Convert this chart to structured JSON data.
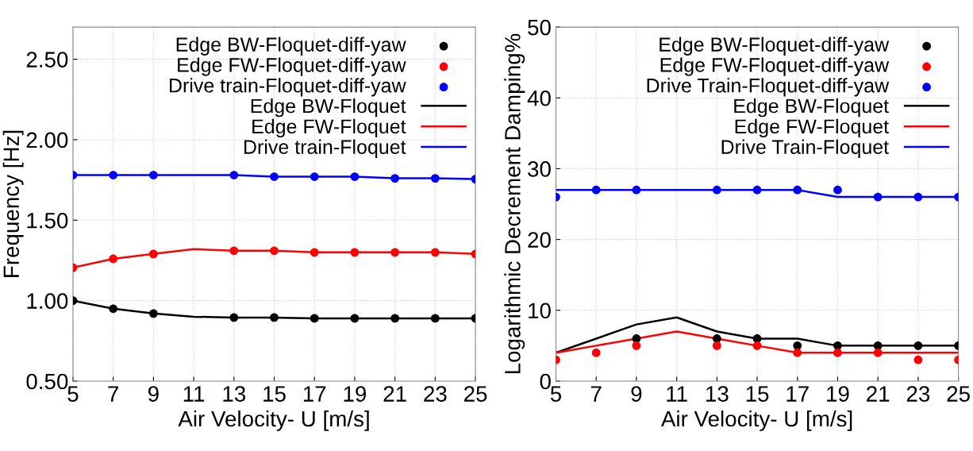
{
  "chart_data": [
    {
      "type": "line",
      "xlabel": "Air Velocity- U [m/s]",
      "ylabel": "Frequency [Hz]",
      "x": [
        5,
        7,
        9,
        11,
        13,
        15,
        17,
        19,
        21,
        23,
        25
      ],
      "xlim": [
        5,
        25
      ],
      "xticks": [
        5,
        7,
        9,
        11,
        13,
        15,
        17,
        19,
        21,
        23,
        25
      ],
      "ylim": [
        0.5,
        2.7
      ],
      "yticks": [
        {
          "value": 0.5,
          "label": "0.50"
        },
        {
          "value": 1.0,
          "label": "1.00"
        },
        {
          "value": 1.5,
          "label": "1.50"
        },
        {
          "value": 2.0,
          "label": "2.00"
        },
        {
          "value": 2.5,
          "label": "2.50"
        }
      ],
      "grid": true,
      "legend": "top right",
      "series": [
        {
          "name": "Edge BW-Floquet-diff-yaw",
          "type": "scatter",
          "marker": "circle",
          "color": "#000000",
          "values": [
            1.0,
            0.95,
            0.92,
            null,
            0.895,
            0.895,
            0.89,
            0.89,
            0.89,
            0.89,
            0.89
          ]
        },
        {
          "name": "Edge FW-Floquet-diff-yaw",
          "type": "scatter",
          "marker": "circle",
          "color": "#ff0000",
          "values": [
            1.205,
            1.26,
            1.29,
            null,
            1.31,
            1.31,
            1.3,
            1.3,
            1.3,
            1.3,
            1.29
          ]
        },
        {
          "name": "Drive train-Floquet-diff-yaw",
          "type": "scatter",
          "marker": "circle",
          "color": "#0000ff",
          "values": [
            1.78,
            1.78,
            1.78,
            null,
            1.78,
            1.77,
            1.77,
            1.77,
            1.76,
            1.76,
            1.755
          ]
        },
        {
          "name": "Edge BW-Floquet",
          "color": "#000000",
          "values": [
            1.0,
            0.95,
            0.92,
            0.9,
            0.895,
            0.895,
            0.89,
            0.89,
            0.89,
            0.89,
            0.89
          ]
        },
        {
          "name": "Edge FW-Floquet",
          "color": "#ff0000",
          "values": [
            1.205,
            1.26,
            1.29,
            1.32,
            1.31,
            1.31,
            1.3,
            1.3,
            1.3,
            1.3,
            1.29
          ]
        },
        {
          "name": "Drive train-Floquet",
          "color": "#0000ff",
          "values": [
            1.78,
            1.78,
            1.78,
            1.78,
            1.78,
            1.77,
            1.77,
            1.77,
            1.76,
            1.76,
            1.755
          ]
        }
      ]
    },
    {
      "type": "line",
      "xlabel": "Air Velocity- U [m/s]",
      "ylabel": "Logarithmic Decrement Damping%",
      "x": [
        5,
        7,
        9,
        11,
        13,
        15,
        17,
        19,
        21,
        23,
        25
      ],
      "xlim": [
        5,
        25
      ],
      "xticks": [
        5,
        7,
        9,
        11,
        13,
        15,
        17,
        19,
        21,
        23,
        25
      ],
      "ylim": [
        0,
        50
      ],
      "yticks": [
        0,
        10,
        20,
        30,
        40,
        50
      ],
      "grid": true,
      "legend": "top right",
      "series": [
        {
          "name": "Edge BW-Floquet-diff-yaw",
          "type": "scatter",
          "marker": "circle",
          "color": "#000000",
          "values": [
            null,
            null,
            6,
            null,
            6,
            6,
            5,
            5,
            5,
            5,
            5
          ]
        },
        {
          "name": "Edge FW-Floquet-diff-yaw",
          "type": "scatter",
          "marker": "circle",
          "color": "#ff0000",
          "values": [
            3,
            4,
            5,
            null,
            5,
            5,
            4,
            4,
            4,
            3,
            3
          ]
        },
        {
          "name": "Drive Train-Floquet-diff-yaw",
          "type": "scatter",
          "marker": "circle",
          "color": "#0000ff",
          "values": [
            26,
            27,
            27,
            null,
            27,
            27,
            27,
            27,
            26,
            26,
            26
          ]
        },
        {
          "name": "Edge BW-Floquet",
          "color": "#000000",
          "values": [
            4,
            6,
            8,
            9,
            7,
            6,
            6,
            5,
            5,
            5,
            5
          ]
        },
        {
          "name": "Edge FW-Floquet",
          "color": "#ff0000",
          "values": [
            4,
            5,
            6,
            7,
            6,
            5,
            4,
            4,
            4,
            4,
            4
          ]
        },
        {
          "name": "Drive Train-Floquet",
          "color": "#0000ff",
          "values": [
            27,
            27,
            27,
            27,
            27,
            27,
            27,
            26,
            26,
            26,
            26
          ]
        }
      ]
    }
  ]
}
